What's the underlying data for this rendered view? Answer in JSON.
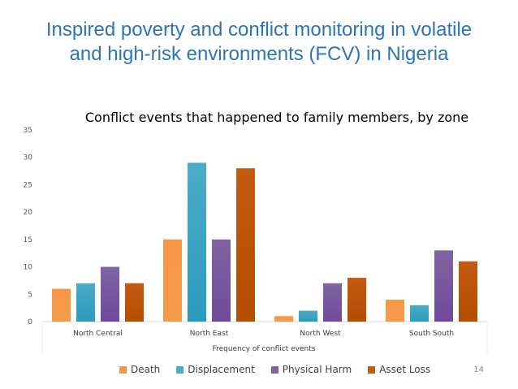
{
  "slide": {
    "title_line1": "Inspired poverty and conflict monitoring in volatile",
    "title_line2": "and high-risk environments (FCV) in Nigeria",
    "page_number": "14"
  },
  "colors": {
    "title": "#2e74b5",
    "axis": "#d9d9d9"
  },
  "chart_data": {
    "type": "bar",
    "title": "Conflict events that happened to family members, by zone",
    "xlabel": "Frequency of conflict events",
    "ylabel": "",
    "categories": [
      "North Central",
      "North East",
      "North West",
      "South South"
    ],
    "ylim": [
      0,
      35
    ],
    "yticks": [
      0,
      5,
      10,
      15,
      20,
      25,
      30,
      35
    ],
    "grid": false,
    "legend_position": "bottom",
    "series": [
      {
        "name": "Death",
        "color": "#f79646",
        "color_dark": "#f59b4c",
        "values": [
          6,
          15,
          1,
          4
        ]
      },
      {
        "name": "Displacement",
        "color": "#4bacc6",
        "color_dark": "#2a9bbd",
        "values": [
          7,
          29,
          2,
          3
        ]
      },
      {
        "name": "Physical Harm",
        "color": "#8064a2",
        "color_dark": "#6f4a9c",
        "values": [
          10,
          15,
          7,
          13
        ]
      },
      {
        "name": "Asset Loss",
        "color": "#c55a11",
        "color_dark": "#b34d00",
        "values": [
          7,
          28,
          8,
          11
        ]
      }
    ]
  }
}
